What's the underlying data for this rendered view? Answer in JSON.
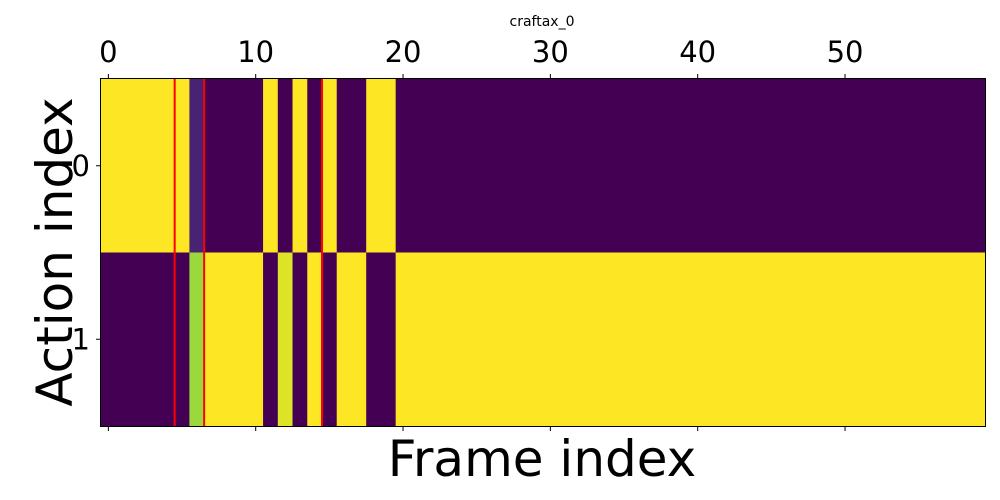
{
  "chart_data": {
    "type": "heatmap",
    "title": "craftax_0",
    "xlabel": "Frame index",
    "ylabel": "Action index",
    "x_tick_values": [
      0,
      10,
      20,
      30,
      40,
      50
    ],
    "x_tick_labels": [
      "0",
      "10",
      "20",
      "30",
      "40",
      "50"
    ],
    "x_ticks_position": "top",
    "y_tick_values": [
      0,
      1
    ],
    "y_tick_labels": [
      "0",
      "1"
    ],
    "n_frames": 60,
    "xlim": [
      -0.5,
      59.5
    ],
    "rows": [
      [
        1,
        1,
        1,
        1,
        1,
        1,
        0.1,
        0,
        0,
        0,
        0,
        1,
        0,
        1,
        0,
        1,
        0,
        0,
        1,
        1,
        0,
        0,
        0,
        0,
        0,
        0,
        0,
        0,
        0,
        0,
        0,
        0,
        0,
        0,
        0,
        0,
        0,
        0,
        0,
        0,
        0,
        0,
        0,
        0,
        0,
        0,
        0,
        0,
        0,
        0,
        0,
        0,
        0,
        0,
        0,
        0,
        0,
        0,
        0,
        0
      ],
      [
        0,
        0,
        0,
        0,
        0,
        0,
        0.85,
        1,
        1,
        1,
        1,
        0,
        0.95,
        0,
        1,
        0,
        1,
        1,
        0,
        0,
        1,
        1,
        1,
        1,
        1,
        1,
        1,
        1,
        1,
        1,
        1,
        1,
        1,
        1,
        1,
        1,
        1,
        1,
        1,
        1,
        1,
        1,
        1,
        1,
        1,
        1,
        1,
        1,
        1,
        1,
        1,
        1,
        1,
        1,
        1,
        1,
        1,
        1,
        1,
        1
      ]
    ],
    "colormap": "viridis",
    "color_low": "#440154",
    "color_high": "#fde725",
    "marker_lines_x": [
      4.5,
      6.5,
      14.5
    ],
    "marker_color": "#ff0000"
  }
}
